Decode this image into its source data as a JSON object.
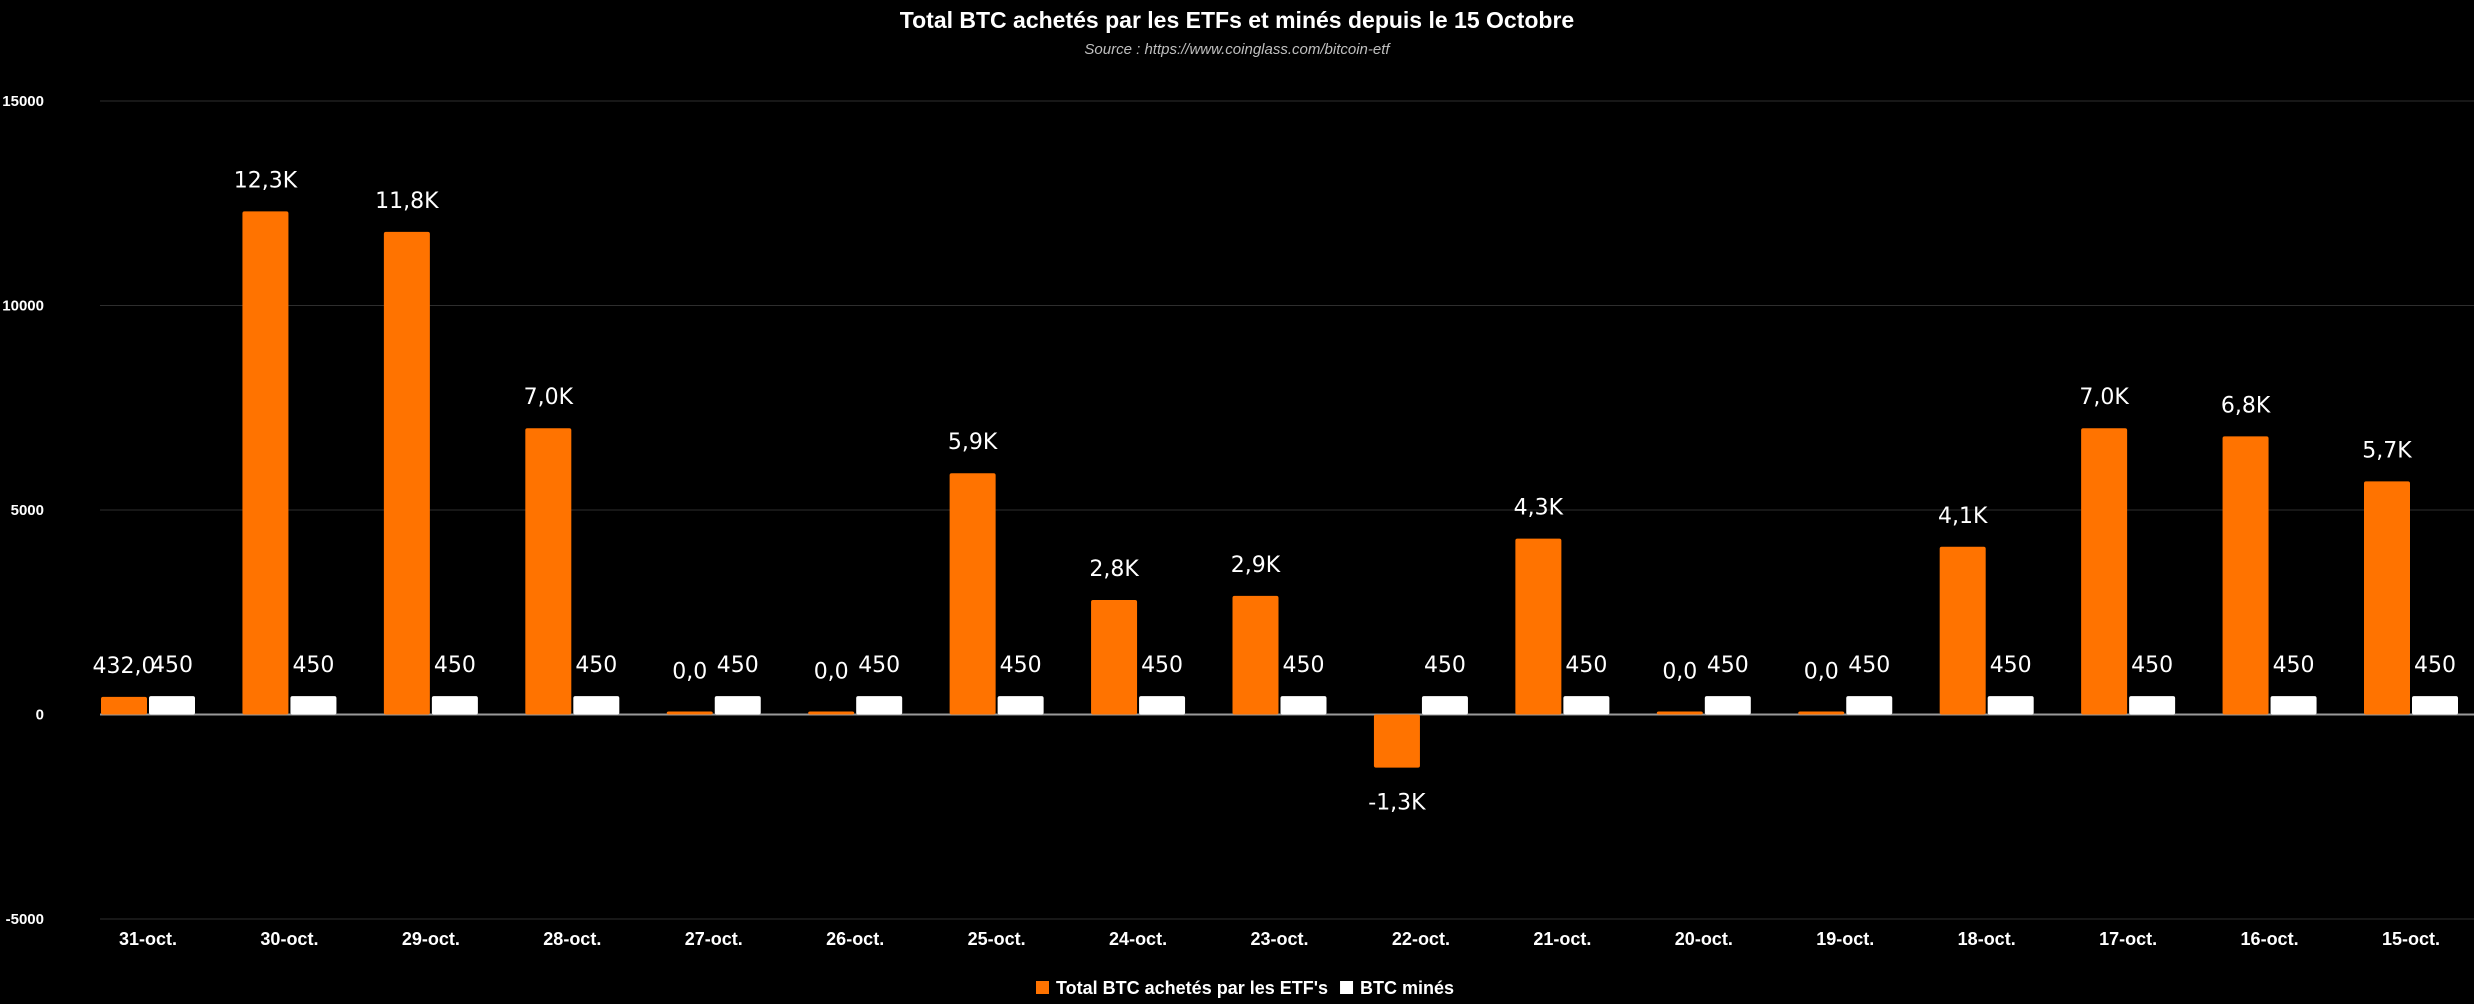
{
  "chart_data": {
    "type": "bar",
    "title": "Total BTC achetés par les ETFs et minés depuis le 15 Octobre",
    "subtitle": "Source : https://www.coinglass.com/bitcoin-etf",
    "xlabel": "",
    "ylabel": "",
    "ylim": [
      -5000,
      15000
    ],
    "yticks": [
      15000,
      10000,
      5000,
      0,
      -5000
    ],
    "grid": true,
    "legend_position": "bottom",
    "categories": [
      "31-oct.",
      "30-oct.",
      "29-oct.",
      "28-oct.",
      "27-oct.",
      "26-oct.",
      "25-oct.",
      "24-oct.",
      "23-oct.",
      "22-oct.",
      "21-oct.",
      "20-oct.",
      "19-oct.",
      "18-oct.",
      "17-oct.",
      "16-oct.",
      "15-oct."
    ],
    "series": [
      {
        "name": "Total BTC achetés par les ETF's",
        "color": "#ff7300",
        "values": [
          432,
          12300,
          11800,
          7000,
          0,
          0,
          5900,
          2800,
          2900,
          -1300,
          4300,
          0,
          0,
          4100,
          7000,
          6800,
          5700
        ],
        "labels": [
          "432,0",
          "12,3K",
          "11,8K",
          "7,0K",
          "0,0",
          "0,0",
          "5,9K",
          "2,8K",
          "2,9K",
          "-1,3K",
          "4,3K",
          "0,0",
          "0,0",
          "4,1K",
          "7,0K",
          "6,8K",
          "5,7K"
        ]
      },
      {
        "name": "BTC minés",
        "color": "#ffffff",
        "values": [
          450,
          450,
          450,
          450,
          450,
          450,
          450,
          450,
          450,
          450,
          450,
          450,
          450,
          450,
          450,
          450,
          450
        ],
        "labels": [
          "450",
          "450",
          "450",
          "450",
          "450",
          "450",
          "450",
          "450",
          "450",
          "450",
          "450",
          "450",
          "450",
          "450",
          "450",
          "450",
          "450"
        ]
      }
    ]
  }
}
